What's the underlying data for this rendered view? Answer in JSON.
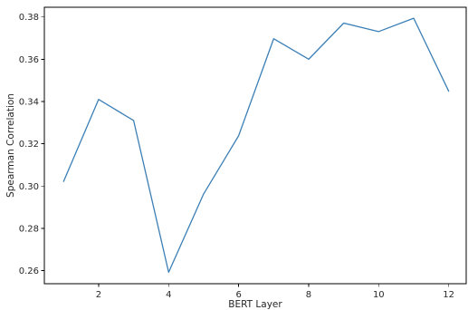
{
  "chart_data": {
    "type": "line",
    "title": "",
    "xlabel": "BERT Layer",
    "ylabel": "Spearman Correlation",
    "x": [
      1,
      2,
      3,
      4,
      5,
      6,
      7,
      8,
      9,
      10,
      11,
      12
    ],
    "series": [
      {
        "values": [
          0.3022,
          0.341,
          0.331,
          0.2592,
          0.2963,
          0.3238,
          0.3697,
          0.36,
          0.3771,
          0.3731,
          0.3794,
          0.3449
        ],
        "color": "#3b7fb6"
      }
    ],
    "xlim": [
      0.45,
      12.5
    ],
    "ylim": [
      0.2538,
      0.3846
    ],
    "xticks": [
      2,
      4,
      6,
      8,
      10,
      12
    ],
    "xtick_labels": [
      "2",
      "4",
      "6",
      "8",
      "10",
      "12"
    ],
    "yticks": [
      0.26,
      0.28,
      0.3,
      0.32,
      0.34,
      0.36,
      0.38
    ],
    "ytick_labels": [
      "0.26",
      "0.28",
      "0.30",
      "0.32",
      "0.34",
      "0.36",
      "0.38"
    ],
    "grid": false,
    "legend": "none"
  }
}
